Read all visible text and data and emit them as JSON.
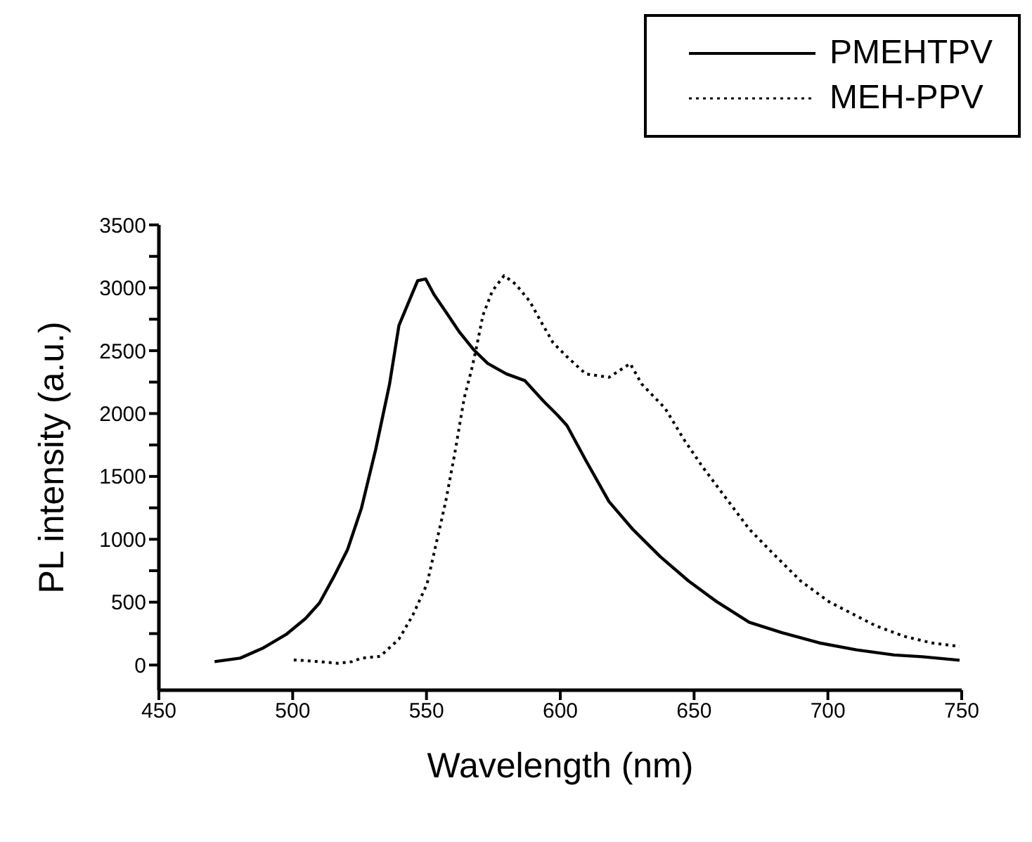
{
  "chart_data": {
    "type": "line",
    "xlabel": "Wavelength (nm)",
    "ylabel": "PL intensity (a.u.)",
    "xlim": [
      450,
      750
    ],
    "xticks": [
      450,
      500,
      550,
      600,
      650,
      700,
      750
    ],
    "ylim": [
      -200,
      3500
    ],
    "yticks": [
      0,
      {
        "value": 250,
        "label": null
      },
      500,
      {
        "value": 750,
        "label": null
      },
      1000,
      {
        "value": 1250,
        "label": null
      },
      1500,
      {
        "value": 1750,
        "label": null
      },
      2000,
      {
        "value": 2250,
        "label": null
      },
      2500,
      {
        "value": 2750,
        "label": null
      },
      3000,
      {
        "value": 3250,
        "label": null
      },
      3500
    ],
    "grid": false,
    "legend": "top right",
    "series": [
      {
        "name": "PMEHTPV",
        "color": "#000000",
        "line_style": "solid",
        "x": [
          470.8,
          480.4,
          489.1,
          497.8,
          504.8,
          510,
          515.3,
          520.5,
          525.7,
          531,
          536.2,
          539.7,
          544,
          546.7,
          549.7,
          552.8,
          557.2,
          562.4,
          567.6,
          572.9,
          579.8,
          586.8,
          593.8,
          599,
          602.5,
          609.5,
          618.2,
          627,
          637.4,
          647.9,
          658.4,
          670.6,
          682.8,
          696.8,
          710.7,
          724.7,
          735.2,
          749.2
        ],
        "values": [
          27,
          55,
          137,
          247,
          370,
          493,
          699,
          918,
          1247,
          1713,
          2234,
          2700,
          2919,
          3056,
          3070,
          2947,
          2810,
          2645,
          2508,
          2398,
          2316,
          2261,
          2097,
          1987,
          1904,
          1629,
          1300,
          1081,
          861,
          669,
          505,
          340,
          258,
          176,
          121,
          80,
          66,
          38
        ]
      },
      {
        "name": "MEH-PPV",
        "color": "#000000",
        "line_style": "dotted",
        "x": [
          500.4,
          510,
          517,
          522.2,
          525.7,
          532.7,
          539.7,
          544.9,
          550.2,
          553.7,
          557.2,
          560.6,
          564.1,
          566.8,
          568.5,
          571.1,
          574.6,
          579,
          583.3,
          588.6,
          592.9,
          597.3,
          602.5,
          609.5,
          618.2,
          626.1,
          630.5,
          639.2,
          646.2,
          653.2,
          661.9,
          670.6,
          679.4,
          689.8,
          700.3,
          709,
          717.8,
          728.2,
          738.7,
          749.2
        ],
        "values": [
          41,
          27,
          14,
          27,
          55,
          69,
          206,
          397,
          644,
          973,
          1302,
          1686,
          2124,
          2344,
          2508,
          2782,
          2974,
          3097,
          3029,
          2892,
          2727,
          2563,
          2452,
          2315,
          2288,
          2397,
          2233,
          2041,
          1794,
          1575,
          1328,
          1081,
          889,
          669,
          505,
          409,
          313,
          230,
          176,
          148
        ]
      }
    ]
  }
}
